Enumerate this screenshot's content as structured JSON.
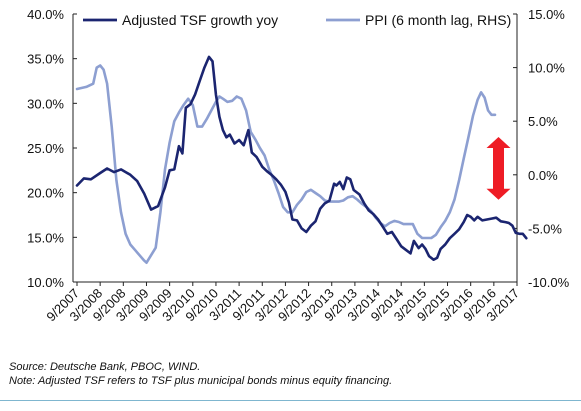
{
  "chart_data": {
    "type": "line",
    "title": "",
    "x_labels": [
      "9/2007",
      "3/2008",
      "9/2008",
      "3/2009",
      "9/2009",
      "3/2010",
      "9/2010",
      "3/2011",
      "9/2011",
      "3/2012",
      "9/2012",
      "3/2013",
      "9/2013",
      "3/2014",
      "9/2014",
      "3/2015",
      "9/2015",
      "3/2016",
      "9/2016",
      "3/2017"
    ],
    "axes": {
      "left": {
        "min": 10,
        "max": 40,
        "step": 5,
        "format": "percent1"
      },
      "right": {
        "min": -10,
        "max": 15,
        "step": 5,
        "format": "percent1"
      }
    },
    "legend": {
      "placement": "top",
      "entries": [
        "Adjusted TSF growth yoy",
        "PPI (6 month lag, RHS)"
      ]
    },
    "grid": false,
    "series": [
      {
        "name": "Adjusted TSF growth yoy",
        "axis": "left",
        "color": "#1b2570",
        "points": [
          [
            0,
            20.8
          ],
          [
            0.3,
            21.6
          ],
          [
            0.6,
            21.5
          ],
          [
            1.0,
            22.2
          ],
          [
            1.3,
            22.7
          ],
          [
            1.6,
            22.3
          ],
          [
            1.9,
            22.6
          ],
          [
            2.3,
            22.0
          ],
          [
            2.6,
            21.3
          ],
          [
            2.9,
            19.9
          ],
          [
            3.2,
            18.1
          ],
          [
            3.5,
            18.5
          ],
          [
            3.8,
            20.6
          ],
          [
            4.0,
            22.5
          ],
          [
            4.2,
            22.6
          ],
          [
            4.4,
            25.2
          ],
          [
            4.55,
            24.4
          ],
          [
            4.7,
            29.5
          ],
          [
            4.9,
            29.9
          ],
          [
            5.1,
            31.0
          ],
          [
            5.3,
            32.5
          ],
          [
            5.5,
            34.0
          ],
          [
            5.7,
            35.2
          ],
          [
            5.85,
            34.7
          ],
          [
            6.0,
            31.0
          ],
          [
            6.15,
            28.5
          ],
          [
            6.3,
            27.0
          ],
          [
            6.45,
            26.2
          ],
          [
            6.6,
            26.5
          ],
          [
            6.8,
            25.5
          ],
          [
            7.0,
            25.9
          ],
          [
            7.2,
            25.3
          ],
          [
            7.4,
            27.0
          ],
          [
            7.55,
            24.5
          ],
          [
            7.75,
            24.0
          ],
          [
            8.0,
            22.9
          ],
          [
            8.2,
            22.4
          ],
          [
            8.4,
            22.0
          ],
          [
            8.6,
            21.5
          ],
          [
            8.8,
            20.9
          ],
          [
            9.0,
            20.1
          ],
          [
            9.15,
            18.9
          ],
          [
            9.3,
            17.0
          ],
          [
            9.5,
            16.9
          ],
          [
            9.7,
            16.0
          ],
          [
            9.9,
            15.6
          ],
          [
            10.1,
            16.3
          ],
          [
            10.3,
            16.8
          ],
          [
            10.5,
            18.2
          ],
          [
            10.7,
            18.8
          ],
          [
            10.9,
            19.1
          ],
          [
            11.1,
            21.0
          ],
          [
            11.2,
            20.8
          ],
          [
            11.35,
            21.2
          ],
          [
            11.5,
            20.4
          ],
          [
            11.65,
            21.7
          ],
          [
            11.8,
            21.5
          ],
          [
            11.95,
            20.3
          ],
          [
            12.2,
            19.8
          ],
          [
            12.4,
            18.8
          ],
          [
            12.6,
            18.0
          ],
          [
            12.8,
            17.6
          ],
          [
            13.0,
            17.0
          ],
          [
            13.2,
            16.2
          ],
          [
            13.4,
            15.4
          ],
          [
            13.6,
            15.6
          ],
          [
            13.8,
            14.8
          ],
          [
            14.0,
            14.0
          ],
          [
            14.2,
            13.6
          ],
          [
            14.4,
            13.2
          ],
          [
            14.55,
            14.6
          ],
          [
            14.75,
            13.8
          ],
          [
            14.9,
            14.2
          ],
          [
            15.05,
            13.7
          ],
          [
            15.2,
            12.9
          ],
          [
            15.4,
            12.5
          ],
          [
            15.55,
            12.7
          ],
          [
            15.7,
            13.7
          ],
          [
            15.9,
            14.2
          ],
          [
            16.1,
            14.9
          ],
          [
            16.3,
            15.4
          ],
          [
            16.5,
            15.9
          ],
          [
            16.7,
            16.7
          ],
          [
            16.85,
            17.5
          ],
          [
            17.0,
            17.3
          ],
          [
            17.15,
            16.9
          ],
          [
            17.3,
            17.3
          ],
          [
            17.5,
            16.9
          ],
          [
            17.7,
            17.0
          ],
          [
            17.9,
            17.1
          ],
          [
            18.1,
            17.2
          ],
          [
            18.3,
            16.8
          ],
          [
            18.5,
            16.7
          ],
          [
            18.65,
            16.6
          ],
          [
            18.8,
            16.3
          ],
          [
            18.95,
            15.5
          ],
          [
            19.1,
            15.4
          ],
          [
            19.25,
            15.4
          ],
          [
            19.4,
            14.9
          ]
        ]
      },
      {
        "name": "PPI (6 month lag, RHS)",
        "axis": "right",
        "color": "#8d9fd1",
        "points": [
          [
            0,
            8.0
          ],
          [
            0.4,
            8.2
          ],
          [
            0.7,
            8.5
          ],
          [
            0.85,
            10.0
          ],
          [
            1.0,
            10.2
          ],
          [
            1.15,
            9.8
          ],
          [
            1.3,
            8.5
          ],
          [
            1.5,
            4.5
          ],
          [
            1.7,
            -0.5
          ],
          [
            1.9,
            -3.5
          ],
          [
            2.1,
            -5.5
          ],
          [
            2.3,
            -6.5
          ],
          [
            2.5,
            -7.0
          ],
          [
            2.7,
            -7.5
          ],
          [
            2.9,
            -8.0
          ],
          [
            3.0,
            -8.2
          ],
          [
            3.2,
            -7.5
          ],
          [
            3.4,
            -6.8
          ],
          [
            3.6,
            -3.5
          ],
          [
            3.8,
            0.5
          ],
          [
            4.0,
            3.0
          ],
          [
            4.2,
            5.0
          ],
          [
            4.4,
            5.8
          ],
          [
            4.6,
            6.5
          ],
          [
            4.8,
            7.1
          ],
          [
            5.0,
            6.5
          ],
          [
            5.2,
            4.5
          ],
          [
            5.4,
            4.5
          ],
          [
            5.6,
            5.2
          ],
          [
            5.8,
            6.0
          ],
          [
            6.0,
            6.8
          ],
          [
            6.15,
            7.3
          ],
          [
            6.3,
            7.1
          ],
          [
            6.5,
            6.8
          ],
          [
            6.7,
            6.9
          ],
          [
            6.9,
            7.3
          ],
          [
            7.1,
            7.1
          ],
          [
            7.3,
            6.0
          ],
          [
            7.5,
            4.0
          ],
          [
            7.7,
            3.3
          ],
          [
            7.9,
            2.5
          ],
          [
            8.1,
            1.8
          ],
          [
            8.3,
            0.5
          ],
          [
            8.5,
            -0.5
          ],
          [
            8.7,
            -1.7
          ],
          [
            8.9,
            -3.0
          ],
          [
            9.1,
            -3.5
          ],
          [
            9.3,
            -3.5
          ],
          [
            9.5,
            -2.8
          ],
          [
            9.7,
            -2.3
          ],
          [
            9.9,
            -1.6
          ],
          [
            10.1,
            -1.4
          ],
          [
            10.3,
            -1.7
          ],
          [
            10.5,
            -2.0
          ],
          [
            10.7,
            -2.4
          ],
          [
            10.9,
            -2.5
          ],
          [
            11.1,
            -2.5
          ],
          [
            11.3,
            -2.5
          ],
          [
            11.5,
            -2.4
          ],
          [
            11.7,
            -2.1
          ],
          [
            11.9,
            -2.0
          ],
          [
            12.1,
            -2.3
          ],
          [
            12.3,
            -2.7
          ],
          [
            12.5,
            -3.0
          ],
          [
            12.7,
            -3.4
          ],
          [
            12.9,
            -4.0
          ],
          [
            13.1,
            -4.5
          ],
          [
            13.3,
            -4.8
          ],
          [
            13.5,
            -4.5
          ],
          [
            13.7,
            -4.3
          ],
          [
            13.9,
            -4.4
          ],
          [
            14.1,
            -4.6
          ],
          [
            14.3,
            -4.6
          ],
          [
            14.5,
            -4.6
          ],
          [
            14.7,
            -5.5
          ],
          [
            14.9,
            -5.9
          ],
          [
            15.1,
            -5.9
          ],
          [
            15.3,
            -5.9
          ],
          [
            15.5,
            -5.6
          ],
          [
            15.7,
            -4.9
          ],
          [
            15.9,
            -4.3
          ],
          [
            16.1,
            -3.5
          ],
          [
            16.3,
            -2.3
          ],
          [
            16.5,
            -0.5
          ],
          [
            16.7,
            1.5
          ],
          [
            16.9,
            3.5
          ],
          [
            17.1,
            5.5
          ],
          [
            17.3,
            7.0
          ],
          [
            17.45,
            7.7
          ],
          [
            17.6,
            7.2
          ],
          [
            17.75,
            6.0
          ],
          [
            17.9,
            5.6
          ],
          [
            18.05,
            5.6
          ]
        ]
      }
    ],
    "annotations": [
      {
        "type": "double-arrow",
        "color": "#ee1c25",
        "x": 18.2,
        "y_top": 2.5,
        "y_bottom": -1.3,
        "axis": "right"
      }
    ]
  },
  "footnotes": {
    "source": "Source: Deutsche Bank, PBOC, WIND.",
    "note": "Note: Adjusted TSF refers to TSF plus municipal bonds minus equity financing."
  }
}
